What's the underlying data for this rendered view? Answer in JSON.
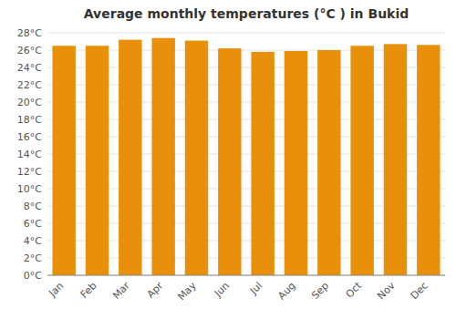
{
  "chart_data": {
    "type": "bar",
    "title": "Average monthly temperatures (°C ) in Bukid",
    "categories": [
      "Jan",
      "Feb",
      "Mar",
      "Apr",
      "May",
      "Jun",
      "Jul",
      "Aug",
      "Sep",
      "Oct",
      "Nov",
      "Dec"
    ],
    "values": [
      26.5,
      26.5,
      27.2,
      27.4,
      27.1,
      26.2,
      25.8,
      25.9,
      26.0,
      26.5,
      26.7,
      26.6
    ],
    "color": "#E8900A",
    "ylim": [
      0,
      28
    ],
    "yticks": [
      {
        "value": 0,
        "label": "0°C"
      },
      {
        "value": 2,
        "label": "2°C"
      },
      {
        "value": 4,
        "label": "4°C"
      },
      {
        "value": 6,
        "label": "6°C"
      },
      {
        "value": 8,
        "label": "8°C"
      },
      {
        "value": 10,
        "label": "10°C"
      },
      {
        "value": 12,
        "label": "12°C"
      },
      {
        "value": 14,
        "label": "14°C"
      },
      {
        "value": 16,
        "label": "16°C"
      },
      {
        "value": 18,
        "label": "18°C"
      },
      {
        "value": 20,
        "label": "20°C"
      },
      {
        "value": 22,
        "label": "22°C"
      },
      {
        "value": 24,
        "label": "24°C"
      },
      {
        "value": 26,
        "label": "26°C"
      },
      {
        "value": 28,
        "label": "28°C"
      }
    ],
    "grid": true
  }
}
